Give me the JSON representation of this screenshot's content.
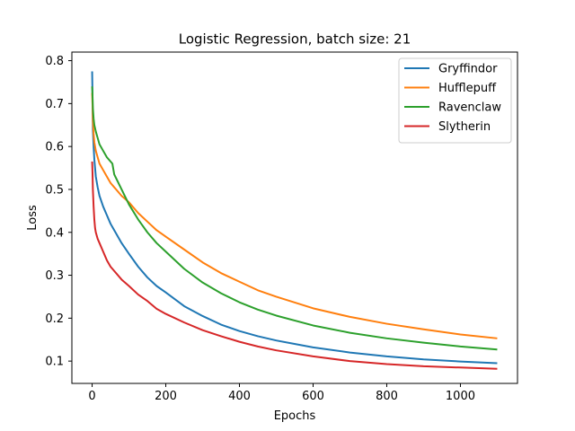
{
  "chart_data": {
    "type": "line",
    "title": "Logistic Regression, batch size: 21",
    "xlabel": "Epochs",
    "ylabel": "Loss",
    "xlim": [
      -55,
      1155
    ],
    "ylim": [
      0.048,
      0.82
    ],
    "xticks": [
      0,
      200,
      400,
      600,
      800,
      1000
    ],
    "yticks": [
      0.1,
      0.2,
      0.3,
      0.4,
      0.5,
      0.6,
      0.7,
      0.8
    ],
    "xtick_labels": [
      "0",
      "200",
      "400",
      "600",
      "800",
      "1000"
    ],
    "ytick_labels": [
      "0.1",
      "0.2",
      "0.3",
      "0.4",
      "0.5",
      "0.6",
      "0.7",
      "0.8"
    ],
    "grid": false,
    "legend_position": "top-right",
    "series": [
      {
        "name": "Gryffindor",
        "color": "#1f77b4",
        "x": [
          0,
          1,
          2,
          4,
          6,
          10,
          15,
          20,
          30,
          40,
          50,
          60,
          80,
          100,
          125,
          150,
          175,
          200,
          250,
          300,
          350,
          400,
          450,
          500,
          600,
          700,
          800,
          900,
          1000,
          1100
        ],
        "y": [
          0.775,
          0.72,
          0.64,
          0.6,
          0.57,
          0.53,
          0.505,
          0.485,
          0.46,
          0.44,
          0.42,
          0.405,
          0.375,
          0.35,
          0.32,
          0.295,
          0.275,
          0.26,
          0.228,
          0.205,
          0.185,
          0.17,
          0.158,
          0.148,
          0.132,
          0.12,
          0.111,
          0.104,
          0.099,
          0.095
        ]
      },
      {
        "name": "Hufflepuff",
        "color": "#ff7f0e",
        "x": [
          0,
          1,
          2,
          4,
          6,
          10,
          15,
          20,
          30,
          40,
          50,
          60,
          80,
          100,
          125,
          150,
          175,
          200,
          250,
          300,
          350,
          400,
          450,
          500,
          600,
          700,
          800,
          900,
          1000,
          1100
        ],
        "y": [
          0.725,
          0.7,
          0.66,
          0.63,
          0.61,
          0.59,
          0.575,
          0.56,
          0.545,
          0.53,
          0.515,
          0.505,
          0.485,
          0.47,
          0.445,
          0.425,
          0.405,
          0.39,
          0.36,
          0.33,
          0.305,
          0.285,
          0.265,
          0.25,
          0.223,
          0.203,
          0.187,
          0.174,
          0.162,
          0.153
        ]
      },
      {
        "name": "Ravenclaw",
        "color": "#2ca02c",
        "x": [
          0,
          1,
          2,
          4,
          6,
          10,
          15,
          20,
          30,
          40,
          50,
          55,
          60,
          80,
          100,
          125,
          150,
          175,
          200,
          250,
          300,
          350,
          400,
          450,
          500,
          600,
          700,
          800,
          900,
          1000,
          1100
        ],
        "y": [
          0.74,
          0.72,
          0.69,
          0.665,
          0.65,
          0.635,
          0.62,
          0.605,
          0.59,
          0.575,
          0.565,
          0.56,
          0.535,
          0.5,
          0.465,
          0.43,
          0.4,
          0.375,
          0.355,
          0.315,
          0.283,
          0.258,
          0.237,
          0.22,
          0.206,
          0.183,
          0.166,
          0.153,
          0.143,
          0.134,
          0.127
        ]
      },
      {
        "name": "Slytherin",
        "color": "#d62728",
        "x": [
          0,
          1,
          2,
          4,
          6,
          8,
          10,
          15,
          20,
          30,
          40,
          50,
          60,
          80,
          100,
          125,
          150,
          175,
          200,
          250,
          300,
          350,
          400,
          450,
          500,
          600,
          700,
          800,
          900,
          1000,
          1100
        ],
        "y": [
          0.565,
          0.54,
          0.5,
          0.46,
          0.43,
          0.41,
          0.4,
          0.385,
          0.375,
          0.355,
          0.335,
          0.32,
          0.31,
          0.29,
          0.275,
          0.255,
          0.24,
          0.222,
          0.21,
          0.19,
          0.172,
          0.158,
          0.145,
          0.134,
          0.125,
          0.111,
          0.1,
          0.093,
          0.088,
          0.085,
          0.082
        ]
      }
    ]
  }
}
